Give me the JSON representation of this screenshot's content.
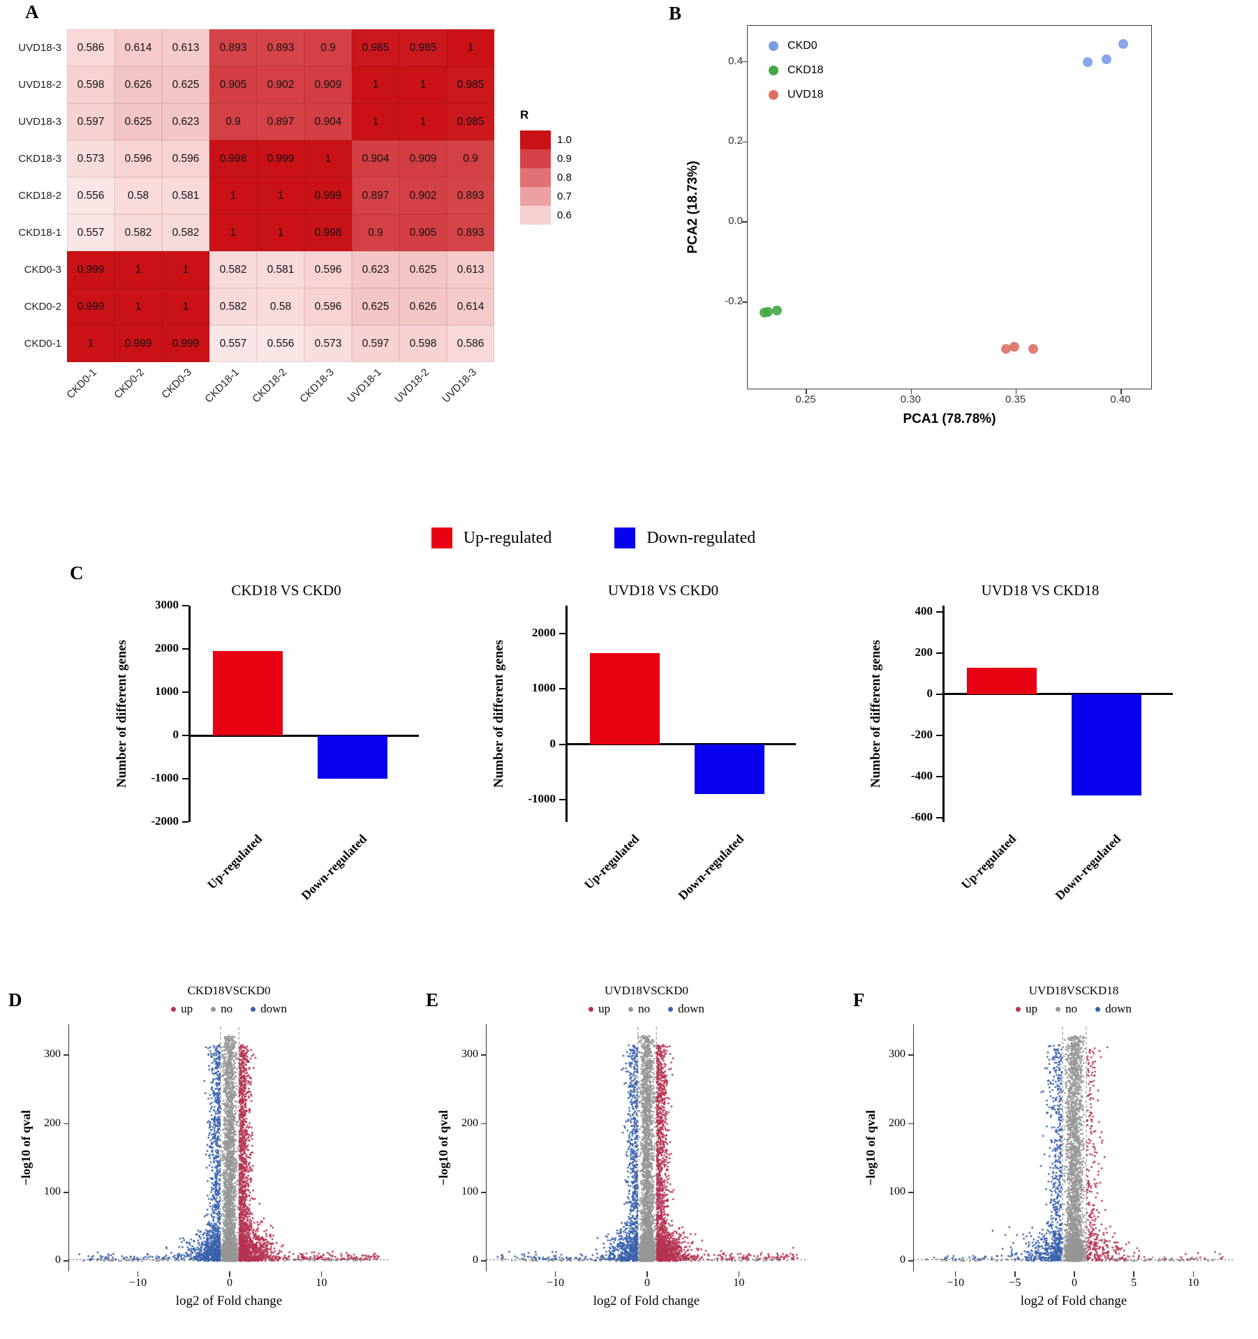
{
  "shared": {
    "c_legend": [
      {
        "label": "Up-regulated",
        "color": "#e60012"
      },
      {
        "label": "Down-regulated",
        "color": "#0a00f0"
      }
    ],
    "volcano_legend": [
      {
        "label": "up",
        "color": "#b73352"
      },
      {
        "label": "no",
        "color": "#969696"
      },
      {
        "label": "down",
        "color": "#3a62ac"
      }
    ],
    "volcano_colors": {
      "up": "#b73352",
      "no": "#969696",
      "down": "#3a62ac"
    }
  },
  "chart_data": [
    {
      "type": "heatmap",
      "panel_label": "A",
      "legend_title": "R",
      "legend_levels": [
        "1.0",
        "0.9",
        "0.8",
        "0.7",
        "0.6"
      ],
      "color_high": "#c91116",
      "color_low": "#fce9e9",
      "col_labels": [
        "CKD0-1",
        "CKD0-2",
        "CKD0-3",
        "CKD18-1",
        "CKD18-2",
        "CKD18-3",
        "UVD18-1",
        "UVD18-2",
        "UVD18-3"
      ],
      "row_labels": [
        "UVD18-3",
        "UVD18-2",
        "UVD18-3",
        "CKD18-3",
        "CKD18-2",
        "CKD18-1",
        "CKD0-3",
        "CKD0-2",
        "CKD0-1"
      ],
      "values": [
        [
          "0.586",
          "0.614",
          "0.613",
          "0.893",
          "0.893",
          "0.9",
          "0.985",
          "0.985",
          "1"
        ],
        [
          "0.598",
          "0.626",
          "0.625",
          "0.905",
          "0.902",
          "0.909",
          "1",
          "1",
          "0.985"
        ],
        [
          "0.597",
          "0.625",
          "0.623",
          "0.9",
          "0.897",
          "0.904",
          "1",
          "1",
          "0.985"
        ],
        [
          "0.573",
          "0.596",
          "0.596",
          "0.998",
          "0.999",
          "1",
          "0.904",
          "0.909",
          "0.9"
        ],
        [
          "0.556",
          "0.58",
          "0.581",
          "1",
          "1",
          "0.999",
          "0.897",
          "0.902",
          "0.893"
        ],
        [
          "0.557",
          "0.582",
          "0.582",
          "1",
          "1",
          "0.998",
          "0.9",
          "0.905",
          "0.893"
        ],
        [
          "0.999",
          "1",
          "1",
          "0.582",
          "0.581",
          "0.596",
          "0.623",
          "0.625",
          "0.613"
        ],
        [
          "0.999",
          "1",
          "1",
          "0.582",
          "0.58",
          "0.596",
          "0.625",
          "0.626",
          "0.614"
        ],
        [
          "1",
          "0.999",
          "0.999",
          "0.557",
          "0.556",
          "0.573",
          "0.597",
          "0.598",
          "0.586"
        ]
      ]
    },
    {
      "type": "scatter",
      "panel_label": "B",
      "xlabel": "PCA1 (78.78%)",
      "ylabel": "PCA2 (18.73%)",
      "xlim": [
        0.222,
        0.415
      ],
      "ylim": [
        -0.42,
        0.49
      ],
      "xticks": [
        {
          "v": 0.25,
          "label": "0.25"
        },
        {
          "v": 0.3,
          "label": "0.30"
        },
        {
          "v": 0.35,
          "label": "0.35"
        },
        {
          "v": 0.4,
          "label": "0.40"
        }
      ],
      "yticks": [
        {
          "v": -0.2,
          "label": "-0.2"
        },
        {
          "v": 0.0,
          "label": "0.0"
        },
        {
          "v": 0.2,
          "label": "0.2"
        },
        {
          "v": 0.4,
          "label": "0.4"
        }
      ],
      "legend_position": "top-left",
      "series": [
        {
          "name": "CKD0",
          "color": "#7b9ce8",
          "points": [
            [
              0.384,
              0.4
            ],
            [
              0.393,
              0.406
            ],
            [
              0.401,
              0.445
            ]
          ]
        },
        {
          "name": "CKD18",
          "color": "#44a944",
          "points": [
            [
              0.23,
              -0.226
            ],
            [
              0.2315,
              -0.2245
            ],
            [
              0.236,
              -0.222
            ]
          ]
        },
        {
          "name": "UVD18",
          "color": "#dd7065",
          "points": [
            [
              0.345,
              -0.317
            ],
            [
              0.349,
              -0.312
            ],
            [
              0.358,
              -0.317
            ]
          ]
        }
      ]
    },
    {
      "type": "bar",
      "panel_label": "C",
      "title": "CKD18 VS CKD0",
      "ylabel": "Number of different genes",
      "categories": [
        "Up-regulated",
        "Down-regulated"
      ],
      "values": [
        1950,
        -1000
      ],
      "colors": [
        "#e60012",
        "#0a00f0"
      ],
      "ylim": [
        -2000,
        3000
      ],
      "yticks": [
        3000,
        2000,
        1000,
        0,
        -1000,
        -2000
      ]
    },
    {
      "type": "bar",
      "title": "UVD18 VS CKD0",
      "ylabel": "Number of different genes",
      "categories": [
        "Up-regulated",
        "Down-regulated"
      ],
      "values": [
        1650,
        -900
      ],
      "colors": [
        "#e60012",
        "#0a00f0"
      ],
      "ylim": [
        -1400,
        2500
      ],
      "yticks": [
        2000,
        1000,
        0,
        -1000
      ]
    },
    {
      "type": "bar",
      "title": "UVD18 VS CKD18",
      "ylabel": "Number of different genes",
      "categories": [
        "Up-regulated",
        "Down-regulated"
      ],
      "values": [
        130,
        -490
      ],
      "colors": [
        "#e60012",
        "#0a00f0"
      ],
      "ylim": [
        -620,
        430
      ],
      "yticks": [
        400,
        200,
        0,
        -200,
        -400,
        -600
      ]
    },
    {
      "type": "scatter",
      "subtype": "volcano",
      "panel_label": "D",
      "title": "CKD18VSCKD0",
      "xlabel": "log2 of Fold change",
      "ylabel": "−log10 of qval",
      "legend": [
        "up",
        "no",
        "down"
      ],
      "xlim": [
        -17.5,
        17.5
      ],
      "ylim": [
        -15,
        345
      ],
      "xticks": [
        -10,
        0,
        10
      ],
      "yticks": [
        0,
        100,
        200,
        300
      ],
      "fc_threshold": 1,
      "n_points": {
        "up": 2000,
        "no": 3800,
        "down": 1200
      },
      "seed": 7
    },
    {
      "type": "scatter",
      "subtype": "volcano",
      "panel_label": "E",
      "title": "UVD18VSCKD0",
      "xlabel": "log2 of Fold change",
      "ylabel": "−log10 of qval",
      "legend": [
        "up",
        "no",
        "down"
      ],
      "xlim": [
        -17.5,
        17.5
      ],
      "ylim": [
        -15,
        345
      ],
      "xticks": [
        -10,
        0,
        10
      ],
      "yticks": [
        0,
        100,
        200,
        300
      ],
      "fc_threshold": 1,
      "n_points": {
        "up": 1800,
        "no": 3800,
        "down": 1050
      },
      "seed": 13
    },
    {
      "type": "scatter",
      "subtype": "volcano",
      "panel_label": "F",
      "title": "UVD18VSCKD18",
      "xlabel": "log2 of Fold change",
      "ylabel": "−log10 of qval",
      "legend": [
        "up",
        "no",
        "down"
      ],
      "xlim": [
        -13.5,
        13.5
      ],
      "ylim": [
        -15,
        345
      ],
      "xticks": [
        -10,
        -5,
        0,
        5,
        10
      ],
      "yticks": [
        0,
        100,
        200,
        300
      ],
      "fc_threshold": 1,
      "n_points": {
        "up": 380,
        "no": 3800,
        "down": 760
      },
      "seed": 21
    }
  ]
}
